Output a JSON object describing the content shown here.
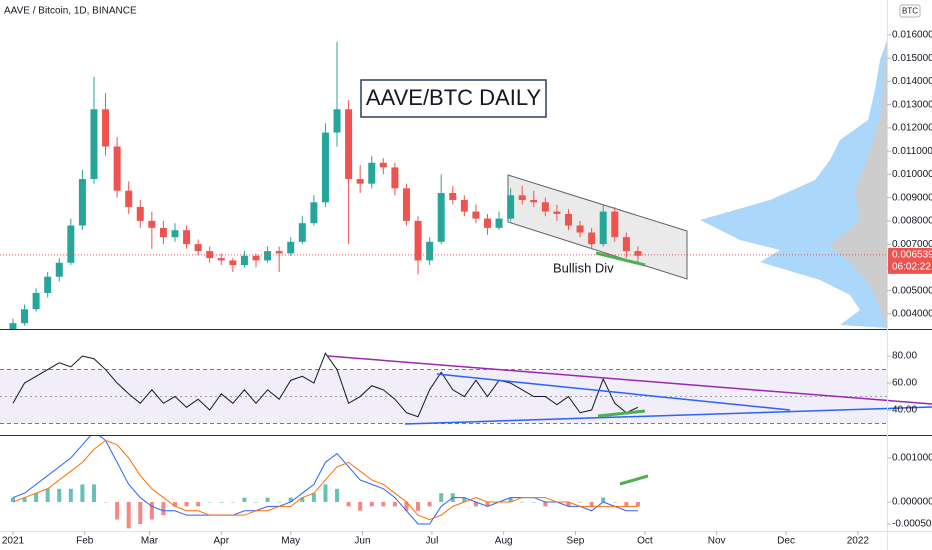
{
  "chart_data": [
    {
      "type": "candlestick",
      "title": "AAVE / Bitcoin, 1D, BINANCE",
      "unit": "BTC",
      "annotations": [
        "AAVE/BTC DAILY",
        "Bullish Div"
      ],
      "x": [
        0,
        5,
        10,
        15,
        20,
        25,
        30,
        35,
        40,
        45,
        50,
        55,
        60,
        65,
        70,
        75,
        80,
        85,
        90,
        95,
        100,
        105,
        110,
        115,
        120,
        125,
        130,
        135,
        140,
        145,
        150,
        155,
        160,
        165,
        170,
        175,
        180,
        185,
        190,
        195,
        200,
        205,
        210,
        215,
        220,
        225,
        230,
        235,
        240,
        245,
        250,
        255,
        260,
        265,
        270
      ],
      "open": [
        0.0033,
        0.0036,
        0.0042,
        0.0049,
        0.0056,
        0.0062,
        0.0078,
        0.0098,
        0.0128,
        0.0112,
        0.0093,
        0.0086,
        0.008,
        0.0077,
        0.0073,
        0.0076,
        0.007,
        0.0067,
        0.0064,
        0.0063,
        0.0061,
        0.0065,
        0.0063,
        0.0067,
        0.0066,
        0.0071,
        0.0079,
        0.0088,
        0.0118,
        0.0128,
        0.0098,
        0.0096,
        0.0105,
        0.0103,
        0.0094,
        0.008,
        0.0063,
        0.0071,
        0.0092,
        0.0089,
        0.0084,
        0.0081,
        0.0077,
        0.0081,
        0.0091,
        0.0089,
        0.0088,
        0.0084,
        0.0083,
        0.0078,
        0.0075,
        0.007,
        0.0084,
        0.0073,
        0.0067
      ],
      "high": [
        0.0038,
        0.0044,
        0.0051,
        0.0058,
        0.0064,
        0.0081,
        0.0102,
        0.0142,
        0.0135,
        0.0116,
        0.0097,
        0.0089,
        0.0084,
        0.008,
        0.0079,
        0.0078,
        0.0072,
        0.0069,
        0.0066,
        0.0064,
        0.0067,
        0.0066,
        0.0069,
        0.0069,
        0.0073,
        0.0082,
        0.0091,
        0.0122,
        0.0157,
        0.0132,
        0.0104,
        0.0108,
        0.0107,
        0.0105,
        0.0096,
        0.0082,
        0.0073,
        0.01,
        0.0095,
        0.0091,
        0.0087,
        0.0083,
        0.0084,
        0.0094,
        0.0095,
        0.0093,
        0.009,
        0.0087,
        0.0085,
        0.008,
        0.0077,
        0.0087,
        0.0086,
        0.0075,
        0.0069
      ],
      "low": [
        0.0032,
        0.0035,
        0.0041,
        0.0047,
        0.0054,
        0.0061,
        0.0076,
        0.0096,
        0.0108,
        0.009,
        0.0083,
        0.0077,
        0.0068,
        0.007,
        0.0071,
        0.0068,
        0.0065,
        0.0062,
        0.0061,
        0.0058,
        0.006,
        0.006,
        0.0062,
        0.0058,
        0.0065,
        0.007,
        0.0078,
        0.0086,
        0.0112,
        0.007,
        0.0092,
        0.0094,
        0.01,
        0.0091,
        0.0078,
        0.0057,
        0.0061,
        0.007,
        0.0087,
        0.0082,
        0.0079,
        0.0074,
        0.0076,
        0.008,
        0.0087,
        0.0086,
        0.0082,
        0.008,
        0.0076,
        0.0073,
        0.0068,
        0.0069,
        0.0071,
        0.0064,
        0.0062
      ],
      "close": [
        0.0036,
        0.0042,
        0.0049,
        0.0056,
        0.0062,
        0.0078,
        0.0098,
        0.0128,
        0.0112,
        0.0093,
        0.0086,
        0.008,
        0.0077,
        0.0073,
        0.0076,
        0.007,
        0.0067,
        0.0064,
        0.0063,
        0.0061,
        0.0065,
        0.0063,
        0.0067,
        0.0066,
        0.0071,
        0.0079,
        0.0088,
        0.0118,
        0.0128,
        0.0098,
        0.0096,
        0.0105,
        0.0103,
        0.0094,
        0.008,
        0.0063,
        0.0071,
        0.0092,
        0.0089,
        0.0084,
        0.0081,
        0.0077,
        0.0081,
        0.0091,
        0.0089,
        0.0088,
        0.0084,
        0.0083,
        0.0078,
        0.0075,
        0.007,
        0.0084,
        0.0073,
        0.0067,
        0.0065
      ],
      "up_color": "#26a69a",
      "down_color": "#ef5350",
      "last_price": 0.006539,
      "countdown": "06:02:22",
      "ylim": [
        0.00335,
        0.0175
      ],
      "yticks": [
        {
          "value": 0.004,
          "label": "0.004000"
        },
        {
          "value": 0.005,
          "label": "0.005000"
        },
        {
          "value": 0.006,
          "label": "0.006000"
        },
        {
          "value": 0.007,
          "label": "0.007000"
        },
        {
          "value": 0.008,
          "label": "0.008000"
        },
        {
          "value": 0.009,
          "label": "0.009000"
        },
        {
          "value": 0.01,
          "label": "0.010000"
        },
        {
          "value": 0.011,
          "label": "0.011000"
        },
        {
          "value": 0.012,
          "label": "0.012000"
        },
        {
          "value": 0.013,
          "label": "0.013000"
        },
        {
          "value": 0.014,
          "label": "0.014000"
        },
        {
          "value": 0.015,
          "label": "0.015000"
        },
        {
          "value": 0.016,
          "label": "0.016000"
        }
      ],
      "xlim": [
        -5.6,
        377.6
      ],
      "xticks": [
        {
          "value": 0,
          "label": "2021"
        },
        {
          "value": 31,
          "label": "Feb"
        },
        {
          "value": 59,
          "label": "Mar"
        },
        {
          "value": 90,
          "label": "Apr"
        },
        {
          "value": 120,
          "label": "May"
        },
        {
          "value": 151,
          "label": "Jun"
        },
        {
          "value": 181,
          "label": "Jul"
        },
        {
          "value": 212,
          "label": "Aug"
        },
        {
          "value": 243,
          "label": "Sep"
        },
        {
          "value": 273,
          "label": "Oct"
        },
        {
          "value": 304,
          "label": "Nov"
        },
        {
          "value": 334,
          "label": "Dec"
        },
        {
          "value": 365,
          "label": "2022"
        }
      ]
    },
    {
      "type": "line",
      "x": [
        0,
        5,
        10,
        15,
        20,
        25,
        30,
        35,
        40,
        45,
        50,
        55,
        60,
        65,
        70,
        75,
        80,
        85,
        90,
        95,
        100,
        105,
        110,
        115,
        120,
        125,
        130,
        135,
        140,
        145,
        150,
        155,
        160,
        165,
        170,
        175,
        180,
        185,
        190,
        195,
        200,
        205,
        210,
        215,
        220,
        225,
        230,
        235,
        240,
        245,
        250,
        255,
        260,
        265,
        270
      ],
      "series": [
        {
          "color": "#131722",
          "values": [
            45,
            60,
            65,
            70,
            75,
            72,
            80,
            78,
            70,
            60,
            52,
            45,
            55,
            45,
            50,
            42,
            48,
            40,
            52,
            45,
            55,
            45,
            55,
            48,
            62,
            65,
            60,
            82,
            70,
            45,
            50,
            58,
            55,
            48,
            38,
            35,
            55,
            68,
            55,
            50,
            62,
            50,
            62,
            60,
            55,
            50,
            50,
            44,
            50,
            38,
            40,
            63,
            45,
            38,
            42
          ]
        }
      ],
      "band": [
        30,
        70
      ],
      "midline": 50,
      "band_color": "#7e57c2",
      "ylim": [
        21.5,
        99.3
      ],
      "yticks": [
        {
          "value": 40,
          "label": "40.00"
        },
        {
          "value": 60,
          "label": "60.00"
        },
        {
          "value": 80,
          "label": "80.00"
        }
      ]
    },
    {
      "type": "macd",
      "x": [
        0,
        5,
        10,
        15,
        20,
        25,
        30,
        35,
        40,
        45,
        50,
        55,
        60,
        65,
        70,
        75,
        80,
        85,
        90,
        95,
        100,
        105,
        110,
        115,
        120,
        125,
        130,
        135,
        140,
        145,
        150,
        155,
        160,
        165,
        170,
        175,
        180,
        185,
        190,
        195,
        200,
        205,
        210,
        215,
        220,
        225,
        230,
        235,
        240,
        245,
        250,
        255,
        260,
        265,
        270
      ],
      "series": [
        {
          "color": "#2962ff",
          "values": [
            0.0001,
            0.0002,
            0.0004,
            0.0006,
            0.0008,
            0.001,
            0.0013,
            0.0016,
            0.0014,
            0.0009,
            0.0004,
            0.0001,
            -0.0001,
            -0.0002,
            -0.0002,
            -0.0003,
            -0.0003,
            -0.0003,
            -0.0003,
            -0.0003,
            -0.0002,
            -0.0002,
            -0.0001,
            -0.0001,
            0.0,
            0.0002,
            0.0004,
            0.0009,
            0.0011,
            0.0008,
            0.0005,
            0.0004,
            0.0003,
            0.0001,
            -0.0002,
            -0.0005,
            -0.0005,
            -0.0001,
            0.0001,
            0.0001,
            0.0,
            -0.0001,
            0.0,
            0.0001,
            0.0001,
            0.0001,
            0.0,
            0.0,
            -0.0001,
            -0.0001,
            -0.0002,
            0.0,
            -0.0001,
            -0.0002,
            -0.0002
          ]
        },
        {
          "color": "#ff6d00",
          "values": [
            0.0,
            0.0001,
            0.0002,
            0.0003,
            0.0005,
            0.0007,
            0.0009,
            0.0012,
            0.0014,
            0.0013,
            0.001,
            0.0006,
            0.0003,
            0.0001,
            -0.0001,
            -0.0002,
            -0.0002,
            -0.0003,
            -0.0003,
            -0.0003,
            -0.0003,
            -0.0002,
            -0.0002,
            -0.0001,
            -0.0001,
            0.0001,
            0.0002,
            0.0005,
            0.0008,
            0.0009,
            0.0007,
            0.0005,
            0.0004,
            0.0002,
            0.0,
            -0.0003,
            -0.0004,
            -0.0003,
            -0.0001,
            0.0,
            0.0001,
            0.0,
            0.0,
            0.0,
            0.0001,
            0.0001,
            0.0001,
            0.0,
            0.0,
            -0.0001,
            -0.0001,
            -0.0001,
            -0.0001,
            -0.0001,
            -0.0001
          ]
        }
      ],
      "histogram": {
        "up_color": "#26a69a",
        "down_color": "#ef5350",
        "values": [
          0.0001,
          0.0001,
          0.0002,
          0.0003,
          0.0003,
          0.0003,
          0.0004,
          0.0004,
          0.0,
          -0.0004,
          -0.0006,
          -0.0005,
          -0.0004,
          -0.0003,
          -0.0001,
          -0.0001,
          -0.0001,
          0.0,
          0.0,
          0.0,
          0.0001,
          0.0,
          0.0001,
          0.0,
          0.0001,
          0.0001,
          0.0002,
          0.0004,
          0.0003,
          -0.0001,
          -0.0002,
          -0.0001,
          -0.0001,
          -0.0001,
          -0.0002,
          -0.0002,
          -0.0001,
          0.0002,
          0.0002,
          0.0001,
          -0.0001,
          -0.0001,
          0.0,
          0.0001,
          0.0,
          0.0,
          -0.0001,
          0.0,
          -0.0001,
          0.0,
          -0.0001,
          0.0001,
          0.0,
          -0.0001,
          -0.0001
        ]
      },
      "ylim": [
        -0.00066,
        0.0015
      ],
      "yticks": [
        {
          "value": -0.0005,
          "label": "-0.000500"
        },
        {
          "value": 0,
          "label": "0.000000"
        },
        {
          "value": 0.001,
          "label": "0.001000"
        }
      ]
    }
  ]
}
